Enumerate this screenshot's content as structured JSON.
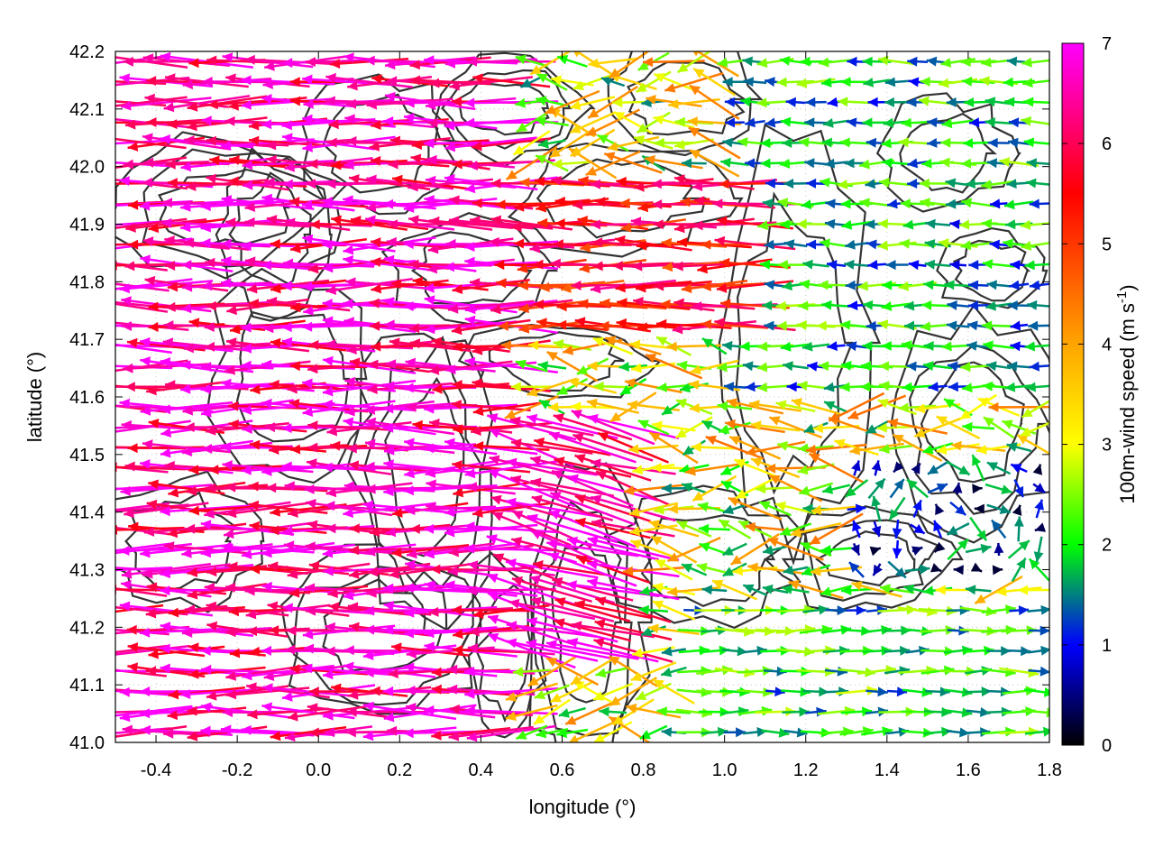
{
  "chart_data": {
    "type": "vector-field",
    "title": "",
    "xlabel": "longitude (°)",
    "ylabel": "latitude (°)",
    "xlim": [
      -0.5,
      1.8
    ],
    "ylim": [
      41.0,
      42.2
    ],
    "xticks": [
      "-0.4",
      "-0.2",
      "0.0",
      "0.2",
      "0.4",
      "0.6",
      "0.8",
      "1.0",
      "1.2",
      "1.4",
      "1.6",
      "1.8"
    ],
    "xtick_values": [
      -0.4,
      -0.2,
      0.0,
      0.2,
      0.4,
      0.6,
      0.8,
      1.0,
      1.2,
      1.4,
      1.6,
      1.8
    ],
    "yticks": [
      "41.0",
      "41.1",
      "41.2",
      "41.3",
      "41.4",
      "41.5",
      "41.6",
      "41.7",
      "41.8",
      "41.9",
      "42.0",
      "42.1",
      "42.2"
    ],
    "ytick_values": [
      41.0,
      41.1,
      41.2,
      41.3,
      41.4,
      41.5,
      41.6,
      41.7,
      41.8,
      41.9,
      42.0,
      42.1,
      42.2
    ],
    "grid": true,
    "colorbar": {
      "label": "100m-wind speed (m s",
      "label_exponent": "-1",
      "label_suffix": ")",
      "range": [
        0,
        7
      ],
      "ticks": [
        "0",
        "1",
        "2",
        "3",
        "4",
        "5",
        "6",
        "7"
      ],
      "tick_values": [
        0,
        1,
        2,
        3,
        4,
        5,
        6,
        7
      ],
      "colors": [
        "#000000",
        "#0000ff",
        "#00ff00",
        "#ffff00",
        "#ffa500",
        "#ff0000",
        "#ff00ff"
      ],
      "color_stops": [
        0,
        1,
        2,
        3,
        4,
        5.5,
        7
      ]
    },
    "wind_regions": [
      {
        "lon": [
          -0.5,
          0.5
        ],
        "lat": [
          41.0,
          42.2
        ],
        "speed": 6.5,
        "direction": "westward"
      },
      {
        "lon": [
          0.5,
          1.1
        ],
        "lat": [
          41.7,
          42.0
        ],
        "speed": 5.5,
        "direction": "westward"
      },
      {
        "lon": [
          0.0,
          0.8
        ],
        "lat": [
          41.15,
          41.55
        ],
        "speed": 6.5,
        "direction": "west-northwest"
      },
      {
        "lon": [
          1.0,
          1.8
        ],
        "lat": [
          41.6,
          42.2
        ],
        "speed": 1.8,
        "direction": "westward"
      },
      {
        "lon": [
          0.9,
          1.8
        ],
        "lat": [
          41.0,
          41.25
        ],
        "speed": 2.0,
        "direction": "eastward"
      },
      {
        "lon": [
          1.3,
          1.8
        ],
        "lat": [
          41.3,
          41.5
        ],
        "speed": 1.0,
        "direction": "variable"
      }
    ]
  }
}
